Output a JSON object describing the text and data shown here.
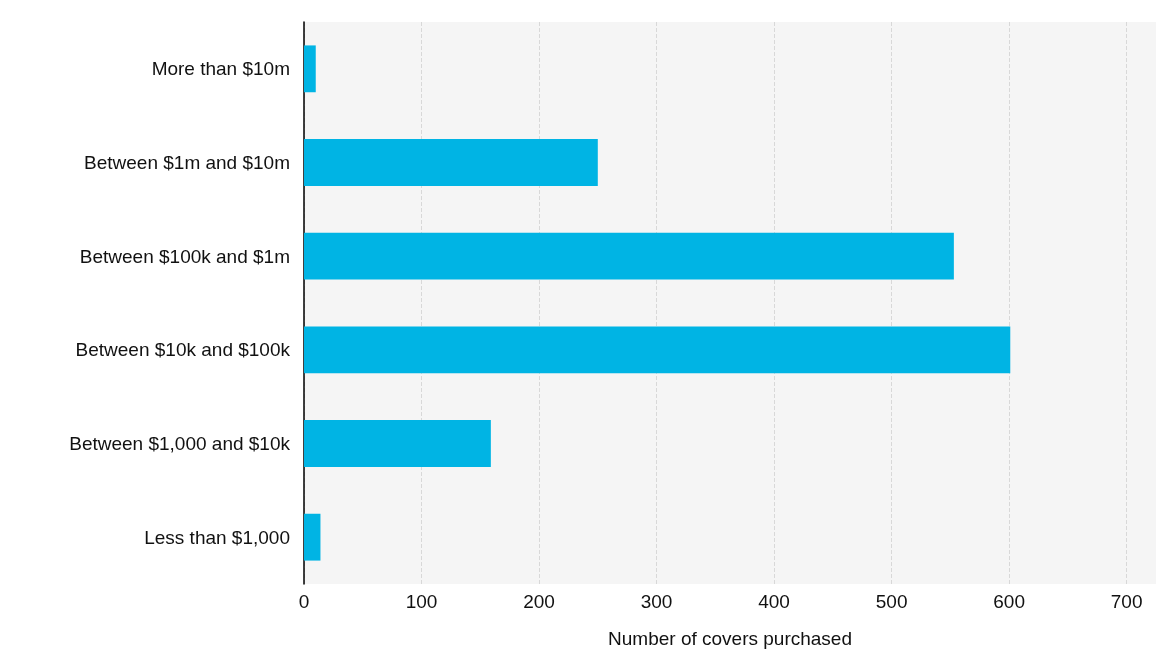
{
  "chart_data": {
    "type": "bar",
    "orientation": "horizontal",
    "categories": [
      "More than $10m",
      "Between $1m and $10m",
      "Between $100k and $1m",
      "Between $10k and $100k",
      "Between $1,000 and $10k",
      "Less than $1,000"
    ],
    "values": [
      10,
      250,
      553,
      601,
      159,
      14
    ],
    "color": "#00b4e4",
    "xlabel": "Number of covers purchased",
    "xlim": [
      0,
      725
    ],
    "xticks": [
      0,
      100,
      200,
      300,
      400,
      500,
      600,
      700
    ],
    "grid": "x"
  }
}
